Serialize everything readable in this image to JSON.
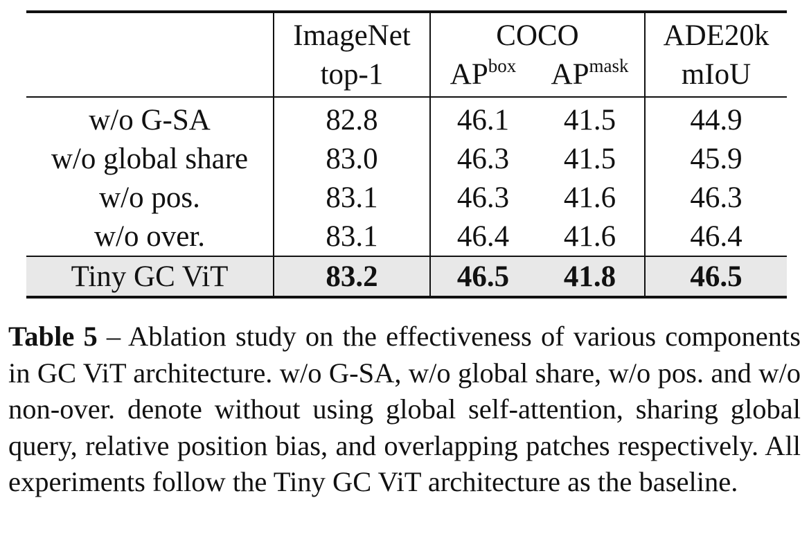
{
  "table": {
    "header": {
      "imagenet_group": "ImageNet",
      "imagenet_metric": "top-1",
      "coco_group": "COCO",
      "coco_box_base": "AP",
      "coco_box_sup": "box",
      "coco_mask_base": "AP",
      "coco_mask_sup": "mask",
      "ade_group": "ADE20k",
      "ade_metric": "mIoU"
    },
    "rows": [
      {
        "label": "w/o G-SA",
        "top1": "82.8",
        "apbox": "46.1",
        "apmask": "41.5",
        "miou": "44.9"
      },
      {
        "label": "w/o global share",
        "top1": "83.0",
        "apbox": "46.3",
        "apmask": "41.5",
        "miou": "45.9"
      },
      {
        "label": "w/o pos.",
        "top1": "83.1",
        "apbox": "46.3",
        "apmask": "41.6",
        "miou": "46.3"
      },
      {
        "label": "w/o over.",
        "top1": "83.1",
        "apbox": "46.4",
        "apmask": "41.6",
        "miou": "46.4"
      },
      {
        "label": "Tiny GC ViT",
        "top1": "83.2",
        "apbox": "46.5",
        "apmask": "41.8",
        "miou": "46.5"
      }
    ],
    "highlight_color": "#e8e8e8"
  },
  "caption": {
    "lead": "Table 5",
    "text": " – Ablation study on the effectiveness of various components in GC ViT architecture. w/o G-SA, w/o global share, w/o pos.  and w/o non-over.  denote without using global self-attention, sharing global query, relative position bias, and overlapping patches respectively. All experiments follow the Tiny GC ViT architecture as the baseline."
  }
}
